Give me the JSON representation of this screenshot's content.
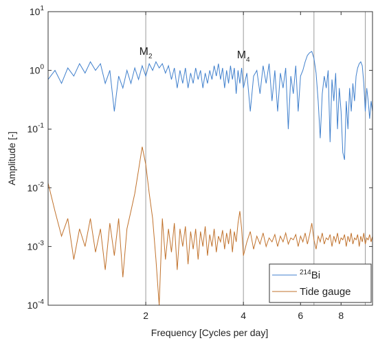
{
  "chart_data": {
    "type": "line",
    "xscale": "log",
    "yscale": "log",
    "xlabel": "Frequency [Cycles per day]",
    "ylabel": "Amplitude [-]",
    "xlim": [
      1,
      10
    ],
    "ylim": [
      0.0001,
      10
    ],
    "xticks": [
      2,
      4,
      6,
      8
    ],
    "yticks": [
      {
        "value": 0.0001,
        "label": "10",
        "sup": "-4"
      },
      {
        "value": 0.001,
        "label": "10",
        "sup": "-3"
      },
      {
        "value": 0.01,
        "label": "10",
        "sup": "-2"
      },
      {
        "value": 0.1,
        "label": "10",
        "sup": "-1"
      },
      {
        "value": 1,
        "label": "10",
        "sup": "0"
      },
      {
        "value": 10,
        "label": "10",
        "sup": "1"
      }
    ],
    "legend": "lower right",
    "vlines": [
      {
        "x": 2,
        "label": "M",
        "sub": "2"
      },
      {
        "x": 4,
        "label": "M",
        "sub": "4"
      },
      {
        "x": 6.6
      },
      {
        "x": 9.5
      }
    ],
    "x": [
      1.0,
      1.05,
      1.1,
      1.15,
      1.2,
      1.25,
      1.3,
      1.35,
      1.4,
      1.45,
      1.5,
      1.55,
      1.6,
      1.65,
      1.7,
      1.75,
      1.8,
      1.85,
      1.9,
      1.95,
      2.0,
      2.05,
      2.1,
      2.15,
      2.2,
      2.25,
      2.3,
      2.35,
      2.4,
      2.45,
      2.5,
      2.55,
      2.6,
      2.65,
      2.7,
      2.75,
      2.8,
      2.85,
      2.9,
      2.95,
      3.0,
      3.05,
      3.1,
      3.15,
      3.2,
      3.25,
      3.3,
      3.35,
      3.4,
      3.45,
      3.5,
      3.55,
      3.6,
      3.65,
      3.7,
      3.75,
      3.8,
      3.85,
      3.9,
      3.95,
      4.0,
      4.1,
      4.2,
      4.3,
      4.4,
      4.5,
      4.6,
      4.7,
      4.8,
      4.9,
      5.0,
      5.1,
      5.2,
      5.3,
      5.4,
      5.5,
      5.6,
      5.7,
      5.8,
      5.9,
      6.0,
      6.1,
      6.2,
      6.3,
      6.4,
      6.5,
      6.6,
      6.7,
      6.8,
      6.9,
      7.0,
      7.1,
      7.2,
      7.3,
      7.4,
      7.5,
      7.6,
      7.7,
      7.8,
      7.9,
      8.0,
      8.1,
      8.2,
      8.3,
      8.4,
      8.5,
      8.6,
      8.7,
      8.8,
      8.9,
      9.0,
      9.1,
      9.2,
      9.3,
      9.4,
      9.5,
      9.6,
      9.7,
      9.8,
      9.9,
      10.0
    ],
    "series": [
      {
        "name": "Bi",
        "name_sup": "214",
        "color": "#3f7fcc",
        "values": [
          0.7,
          1.0,
          0.6,
          1.1,
          0.8,
          1.3,
          0.9,
          1.4,
          1.0,
          1.3,
          0.6,
          1.0,
          0.2,
          0.8,
          0.5,
          1.0,
          0.6,
          1.1,
          0.7,
          1.2,
          0.8,
          1.3,
          1.0,
          1.4,
          1.1,
          1.3,
          0.9,
          1.2,
          0.7,
          1.1,
          0.5,
          1.0,
          0.6,
          1.1,
          0.5,
          0.9,
          0.6,
          1.1,
          0.7,
          1.0,
          0.5,
          0.9,
          0.6,
          1.0,
          0.7,
          1.2,
          0.8,
          1.3,
          0.7,
          1.1,
          0.5,
          1.0,
          0.6,
          1.2,
          0.7,
          1.1,
          0.4,
          1.0,
          0.6,
          1.1,
          0.5,
          0.9,
          0.2,
          0.8,
          1.0,
          0.4,
          1.2,
          0.6,
          1.3,
          0.3,
          1.0,
          0.2,
          0.9,
          0.5,
          1.1,
          0.1,
          0.8,
          0.4,
          1.2,
          0.2,
          0.8,
          1.0,
          1.4,
          1.8,
          2.0,
          2.1,
          1.6,
          0.9,
          0.3,
          0.07,
          0.4,
          0.8,
          0.5,
          1.0,
          0.06,
          0.7,
          0.3,
          0.9,
          0.1,
          0.5,
          0.2,
          0.04,
          0.03,
          0.3,
          0.1,
          0.5,
          0.2,
          0.6,
          0.3,
          0.8,
          1.1,
          1.3,
          1.4,
          1.2,
          0.6,
          0.2,
          0.5,
          0.3,
          0.15,
          0.3,
          0.2
        ]
      },
      {
        "name": "Tide gauge",
        "color": "#c0712b",
        "values": [
          0.012,
          0.004,
          0.0015,
          0.003,
          0.0006,
          0.002,
          0.001,
          0.003,
          0.0008,
          0.002,
          0.0004,
          0.0025,
          0.0007,
          0.003,
          0.0003,
          0.002,
          0.004,
          0.008,
          0.02,
          0.05,
          0.025,
          0.008,
          0.003,
          0.0006,
          0.0001,
          0.003,
          0.0006,
          0.002,
          0.0008,
          0.0025,
          0.0004,
          0.002,
          0.001,
          0.0022,
          0.0005,
          0.0018,
          0.0009,
          0.002,
          0.0006,
          0.0018,
          0.001,
          0.0022,
          0.0007,
          0.0016,
          0.001,
          0.002,
          0.0008,
          0.0015,
          0.0012,
          0.0019,
          0.0009,
          0.0017,
          0.0011,
          0.002,
          0.0008,
          0.0018,
          0.0012,
          0.0025,
          0.004,
          0.002,
          0.0007,
          0.0012,
          0.0018,
          0.0009,
          0.0015,
          0.0011,
          0.0017,
          0.001,
          0.0014,
          0.0012,
          0.0016,
          0.001,
          0.0015,
          0.0012,
          0.0017,
          0.0011,
          0.0014,
          0.0013,
          0.0016,
          0.001,
          0.0015,
          0.0012,
          0.0017,
          0.0011,
          0.0016,
          0.0025,
          0.0013,
          0.0009,
          0.0015,
          0.0012,
          0.0017,
          0.0011,
          0.0014,
          0.0013,
          0.0016,
          0.001,
          0.0015,
          0.0012,
          0.0017,
          0.0011,
          0.0014,
          0.0013,
          0.0016,
          0.001,
          0.0015,
          0.0012,
          0.0017,
          0.0011,
          0.0014,
          0.0013,
          0.0016,
          0.001,
          0.0015,
          0.0012,
          0.0017,
          0.0011,
          0.0014,
          0.0013,
          0.0016,
          0.0012,
          0.0015
        ]
      }
    ]
  }
}
